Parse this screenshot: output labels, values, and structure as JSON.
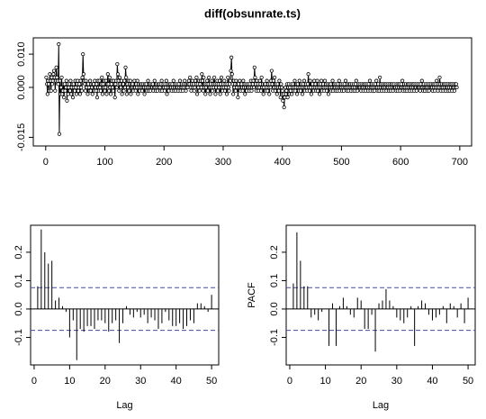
{
  "chart_data": [
    {
      "type": "line",
      "title": "diff(obsunrate.ts)",
      "color": "#000000",
      "markers": true,
      "xlim": [
        -21,
        720
      ],
      "xticks": [
        0,
        100,
        200,
        300,
        400,
        500,
        600,
        700
      ],
      "ylim": [
        -0.0176,
        0.0149
      ],
      "yticks": [
        -0.015,
        {
          "value": 0,
          "label": "0.000"
        },
        {
          "value": 0.01,
          "label": "0.010"
        }
      ],
      "values": [
        0.003,
        0.001,
        -0.002,
        0.002,
        0.001,
        -0.001,
        0.004,
        0.002,
        -0.001,
        0.003,
        0.001,
        0.002,
        0.004,
        0.005,
        0.003,
        -0.001,
        0.002,
        0.006,
        0.003,
        0.002,
        0.001,
        0.013,
        -0.014,
        0.002,
        -0.002,
        0,
        0.003,
        -0.002,
        -0.001,
        0.001,
        -0.003,
        0.001,
        -0.001,
        0,
        0.002,
        -0.004,
        0.001,
        -0.002,
        0,
        0.001,
        -0.001,
        0.002,
        -0.002,
        0,
        0.001,
        -0.003,
        0.001,
        0,
        -0.001,
        0.002,
        0,
        -0.002,
        0.001,
        0.002,
        -0.001,
        0,
        0.001,
        -0.002,
        0.002,
        0,
        -0.001,
        0.003,
        0.01,
        0.004,
        0.002,
        0.001,
        -0.001,
        0.002,
        0,
        0.001,
        -0.002,
        0.001,
        0,
        -0.001,
        0.002,
        -0.001,
        0.001,
        0,
        -0.002,
        0.001,
        0.001,
        -0.001,
        0.002,
        0,
        -0.001,
        0.001,
        -0.003,
        0.002,
        0,
        -0.001,
        0.002,
        0,
        -0.001,
        0.001,
        0.003,
        -0.002,
        0.001,
        0,
        0.002,
        -0.001,
        0,
        0.002,
        -0.002,
        0.001,
        0.004,
        0.001,
        -0.001,
        0.003,
        0,
        -0.002,
        0.001,
        0.002,
        0,
        -0.001,
        0.002,
        0.001,
        -0.003,
        0.001,
        0.002,
        0,
        0.007,
        0.004,
        0.002,
        -0.001,
        0.003,
        0.001,
        0,
        0.002,
        -0.002,
        0.001,
        0.001,
        -0.001,
        0.002,
        0,
        0.006,
        0.003,
        -0.002,
        0.001,
        0,
        0.002,
        -0.001,
        0.001,
        0.002,
        -0.002,
        0.001,
        0,
        0.001,
        -0.001,
        0,
        0.002,
        0,
        -0.001,
        0.001,
        0,
        0.002,
        -0.002,
        0.001,
        0,
        -0.001,
        0.001,
        0,
        0.001,
        -0.001,
        0,
        0.001,
        0,
        -0.002,
        0.001,
        0,
        0.001,
        -0.001,
        0,
        0.002,
        -0.001,
        0,
        0.001,
        -0.001,
        0,
        0.001,
        0,
        0.001,
        -0.001,
        0,
        0.002,
        0,
        -0.001,
        0.001,
        0,
        -0.001,
        0.001,
        0,
        0.001,
        0,
        -0.001,
        0.001,
        0.002,
        -0.001,
        0,
        0.001,
        0,
        -0.001,
        0.001,
        0,
        0.002,
        -0.002,
        0.001,
        0,
        -0.001,
        0.001,
        0,
        0.001,
        0,
        -0.001,
        0.001,
        0,
        0.002,
        -0.001,
        0,
        0.001,
        -0.001,
        0,
        0.001,
        0,
        -0.001,
        0.001,
        0,
        0.002,
        -0.001,
        0,
        0.001,
        0,
        -0.001,
        0.001,
        0,
        0.002,
        0.001,
        -0.001,
        0,
        0.001,
        0,
        0.001,
        0.002,
        0.001,
        0.003,
        0,
        -0.001,
        0.001,
        0.002,
        0,
        0.001,
        -0.001,
        0,
        0.002,
        0.001,
        0.003,
        -0.002,
        0.001,
        0,
        0.002,
        -0.001,
        0.001,
        0.002,
        0,
        0.004,
        0.002,
        -0.001,
        0.003,
        0,
        0.001,
        -0.002,
        0,
        0.001,
        0.002,
        -0.001,
        0.001,
        0.003,
        0,
        -0.002,
        0.001,
        0,
        0.002,
        -0.001,
        0.001,
        0,
        0.003,
        0.001,
        -0.002,
        0,
        0.001,
        0.002,
        -0.001,
        0.001,
        0,
        0.002,
        -0.002,
        0.001,
        0.003,
        0,
        -0.001,
        0.001,
        0,
        0.002,
        -0.001,
        0.001,
        0,
        -0.002,
        0.001,
        0.003,
        0,
        -0.001,
        0.001,
        0.002,
        0.005,
        0.009,
        0.004,
        0.001,
        -0.002,
        0.002,
        0,
        0.001,
        -0.001,
        0.002,
        0,
        0.001,
        -0.003,
        0.001,
        0,
        0.002,
        -0.001,
        0,
        0.001,
        0,
        -0.001,
        0.002,
        0,
        0.001,
        -0.002,
        0,
        0.001,
        -0.001,
        0,
        0.001,
        0,
        -0.001,
        0.001,
        0,
        0.002,
        -0.001,
        0,
        0.001,
        0.002,
        0,
        0.006,
        0.003,
        0.001,
        -0.001,
        0.002,
        0,
        0.001,
        -0.001,
        0,
        0.002,
        0.001,
        -0.001,
        0.003,
        0,
        0.001,
        -0.002,
        0,
        0.001,
        0.001,
        -0.001,
        0,
        0.002,
        -0.001,
        0.001,
        0,
        -0.002,
        0.001,
        0,
        0.002,
        0.005,
        0.001,
        -0.001,
        0.002,
        0,
        0.003,
        -0.001,
        0.001,
        0,
        -0.002,
        0.001,
        0,
        -0.001,
        0.002,
        0,
        -0.003,
        0.001,
        0,
        -0.001,
        -0.004,
        -0.002,
        -0.006,
        -0.003,
        0,
        -0.002,
        -0.001,
        0.001,
        -0.003,
        0,
        0.001,
        -0.002,
        0,
        -0.001,
        0.001,
        -0.002,
        0,
        0.001,
        -0.001,
        0,
        0.002,
        -0.001,
        0,
        0.001,
        -0.002,
        0.001,
        0,
        -0.001,
        0.002,
        0,
        -0.001,
        0.001,
        0,
        -0.002,
        0.001,
        0,
        0.002,
        -0.001,
        0,
        0.001,
        0,
        -0.001,
        0.001,
        0.004,
        0,
        -0.001,
        0.002,
        0,
        -0.002,
        0.001,
        0.001,
        0,
        -0.001,
        0.002,
        0,
        0.001,
        -0.001,
        0,
        0.002,
        -0.001,
        0,
        0.001,
        -0.002,
        0,
        0.001,
        0.002,
        -0.001,
        0,
        0.001,
        0,
        -0.001,
        0.002,
        0,
        0.001,
        -0.001,
        0,
        0.001,
        -0.002,
        0,
        0.001,
        0,
        0.001,
        -0.001,
        0,
        0.002,
        -0.001,
        0,
        0.001,
        0,
        -0.001,
        0.001,
        0,
        -0.001,
        0.001,
        0,
        0.002,
        -0.001,
        0,
        0.001,
        0,
        -0.001,
        0.001,
        0,
        -0.001,
        0.001,
        0,
        0.002,
        0,
        -0.001,
        0.001,
        0,
        -0.001,
        0.001,
        0,
        0.001,
        -0.001,
        0,
        0.001,
        0,
        -0.001,
        0.001,
        0,
        -0.001,
        0.001,
        0.002,
        0,
        -0.001,
        0,
        0.001,
        0,
        0,
        0.001,
        -0.001,
        0,
        0.001,
        0,
        -0.001,
        0.001,
        0,
        0.001,
        -0.001,
        0,
        0.001,
        0,
        -0.001,
        0.001,
        0,
        0.002,
        -0.001,
        0,
        0.001,
        0,
        -0.001,
        0.001,
        0,
        -0.001,
        0.001,
        0,
        0.002,
        0,
        -0.001,
        0.001,
        0,
        -0.001,
        0.003,
        0,
        0.001,
        -0.001,
        0,
        0.001,
        0,
        -0.001,
        0.001,
        0,
        0.001,
        -0.001,
        0,
        0.001,
        0,
        -0.001,
        0.001,
        0,
        -0.001,
        0.001,
        0,
        0.001,
        -0.001,
        0,
        0.001,
        0,
        0,
        -0.001,
        0.001,
        0,
        -0.001,
        0.001,
        0,
        0.001,
        -0.001,
        0,
        0.001,
        0,
        0.002,
        -0.001,
        0,
        0.001,
        0,
        -0.001,
        0.001,
        0,
        -0.001,
        0.001,
        0,
        0.001,
        -0.001,
        0,
        0.001,
        0,
        -0.001,
        0.001,
        0,
        0.001,
        -0.001,
        0,
        0.001,
        0,
        -0.001,
        0.001,
        0,
        0,
        0.001,
        0,
        -0.001,
        0.001,
        0,
        0.002,
        0,
        -0.001,
        0.001,
        0,
        -0.001,
        0,
        0.001,
        0,
        -0.001,
        0.001,
        0,
        -0.001,
        0.001,
        0,
        0,
        0.001,
        0,
        -0.001,
        0.001,
        0,
        0.001,
        -0.001,
        0,
        0.001,
        0.002,
        0,
        -0.001,
        0.001,
        0,
        0.003,
        0.001,
        -0.001,
        0,
        0.001,
        0,
        -0.001,
        0.001,
        0,
        0.001,
        -0.001,
        0,
        0.001,
        0,
        -0.001,
        0.001,
        0,
        -0.001,
        0.001,
        0,
        0.001,
        -0.001,
        0,
        0.001,
        0,
        -0.001,
        0.001,
        0,
        0.001,
        0
      ]
    },
    {
      "type": "bar",
      "x_label": "Lag",
      "color": "#000000",
      "conf_limits": [
        -0.075,
        0.075
      ],
      "conf_color": "#4a4aa8",
      "xlim": [
        -1,
        52
      ],
      "xticks": [
        0,
        10,
        20,
        30,
        40,
        50
      ],
      "ylim": [
        -0.197,
        0.295
      ],
      "yticks": [
        -0.1,
        {
          "value": 0,
          "label": "0.0"
        },
        0.1,
        0.2
      ],
      "x": [
        1,
        2,
        3,
        4,
        5,
        6,
        7,
        8,
        9,
        10,
        11,
        12,
        13,
        14,
        15,
        16,
        17,
        18,
        19,
        20,
        21,
        22,
        23,
        24,
        25,
        26,
        27,
        28,
        29,
        30,
        31,
        32,
        33,
        34,
        35,
        36,
        37,
        38,
        39,
        40,
        41,
        42,
        43,
        44,
        45,
        46,
        47,
        48,
        49,
        50
      ],
      "values": [
        0.08,
        0.28,
        0.2,
        0.16,
        0.17,
        0.03,
        0.04,
        0.01,
        -0.01,
        -0.1,
        -0.04,
        -0.18,
        -0.07,
        -0.08,
        -0.06,
        -0.06,
        -0.07,
        -0.04,
        -0.04,
        -0.05,
        -0.08,
        -0.05,
        -0.04,
        -0.12,
        -0.05,
        0.01,
        -0.02,
        -0.03,
        -0.01,
        -0.03,
        -0.02,
        -0.05,
        -0.03,
        -0.04,
        -0.07,
        -0.05,
        -0.01,
        -0.04,
        -0.06,
        -0.06,
        -0.05,
        -0.07,
        -0.06,
        -0.04,
        -0.05,
        0.02,
        0.02,
        0.01,
        -0.01,
        0.05
      ]
    },
    {
      "type": "bar",
      "x_label": "Lag",
      "y_label": "PACF",
      "color": "#000000",
      "conf_limits": [
        -0.075,
        0.075
      ],
      "conf_color": "#4a4aa8",
      "xlim": [
        -1,
        52
      ],
      "xticks": [
        0,
        10,
        20,
        30,
        40,
        50
      ],
      "ylim": [
        -0.197,
        0.295
      ],
      "yticks": [
        -0.1,
        {
          "value": 0,
          "label": "0.0"
        },
        0.1,
        0.2
      ],
      "x": [
        1,
        2,
        3,
        4,
        5,
        6,
        7,
        8,
        9,
        10,
        11,
        12,
        13,
        14,
        15,
        16,
        17,
        18,
        19,
        20,
        21,
        22,
        23,
        24,
        25,
        26,
        27,
        28,
        29,
        30,
        31,
        32,
        33,
        34,
        35,
        36,
        37,
        38,
        39,
        40,
        41,
        42,
        43,
        44,
        45,
        46,
        47,
        48,
        49,
        50
      ],
      "values": [
        0.09,
        0.27,
        0.17,
        0.08,
        0.08,
        -0.03,
        -0.02,
        -0.04,
        -0.01,
        0.0,
        -0.13,
        0.02,
        -0.13,
        0.01,
        0.04,
        0.01,
        -0.02,
        -0.03,
        0.04,
        0.03,
        -0.07,
        -0.07,
        -0.02,
        -0.15,
        0.02,
        0.03,
        0.07,
        0.03,
        0.01,
        -0.03,
        -0.04,
        -0.05,
        -0.03,
        0.01,
        -0.13,
        0.01,
        0.03,
        0.02,
        -0.02,
        -0.04,
        -0.03,
        -0.02,
        0.01,
        -0.05,
        0.02,
        0.01,
        -0.03,
        0.02,
        -0.05,
        0.04
      ]
    }
  ]
}
